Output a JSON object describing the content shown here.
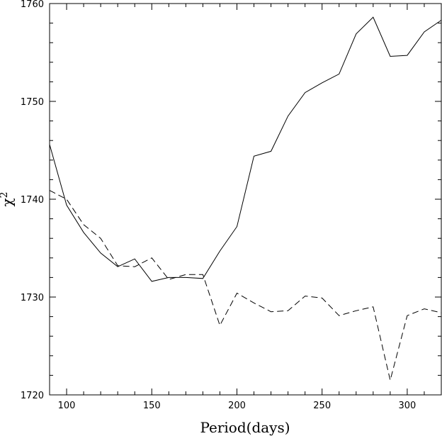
{
  "chart_data": {
    "type": "line",
    "title": "",
    "xlabel": "Period(days)",
    "ylabel": "χ2",
    "ylabel_base": "χ",
    "ylabel_sup": "2",
    "xlim": [
      90,
      320
    ],
    "ylim": [
      1720,
      1760
    ],
    "x_major_ticks": [
      100,
      150,
      200,
      250,
      300
    ],
    "x_minor_step": 10,
    "y_major_ticks": [
      1720,
      1730,
      1740,
      1750,
      1760
    ],
    "y_minor_step": 2,
    "x_tick_labels": [
      "100",
      "150",
      "200",
      "250",
      "300"
    ],
    "y_tick_labels": [
      "1720",
      "1730",
      "1740",
      "1750",
      "1760"
    ],
    "grid": false,
    "series": [
      {
        "style": "solid",
        "color": "#000000",
        "x": [
          90,
          100,
          110,
          120,
          130,
          140,
          150,
          160,
          170,
          180,
          190,
          200,
          210,
          220,
          230,
          240,
          250,
          260,
          270,
          280,
          290,
          300,
          310,
          320
        ],
        "y": [
          1745.6,
          1739.4,
          1736.6,
          1734.5,
          1733.1,
          1733.9,
          1731.6,
          1732.0,
          1732.0,
          1731.9,
          1734.7,
          1737.2,
          1744.4,
          1744.9,
          1748.5,
          1750.9,
          1751.9,
          1752.8,
          1756.9,
          1758.6,
          1754.6,
          1754.7,
          1757.1,
          1758.3
        ]
      },
      {
        "style": "dashed",
        "color": "#000000",
        "x": [
          90,
          100,
          110,
          120,
          130,
          140,
          150,
          160,
          170,
          180,
          190,
          200,
          210,
          220,
          230,
          240,
          250,
          260,
          270,
          280,
          290,
          300,
          310,
          320
        ],
        "y": [
          1740.9,
          1740.0,
          1737.4,
          1736.0,
          1733.2,
          1733.1,
          1734.0,
          1731.8,
          1732.3,
          1732.3,
          1727.1,
          1730.4,
          1729.4,
          1728.5,
          1728.6,
          1730.1,
          1729.9,
          1728.1,
          1728.6,
          1729.0,
          1721.5,
          1728.1,
          1728.8,
          1728.4
        ]
      }
    ]
  }
}
